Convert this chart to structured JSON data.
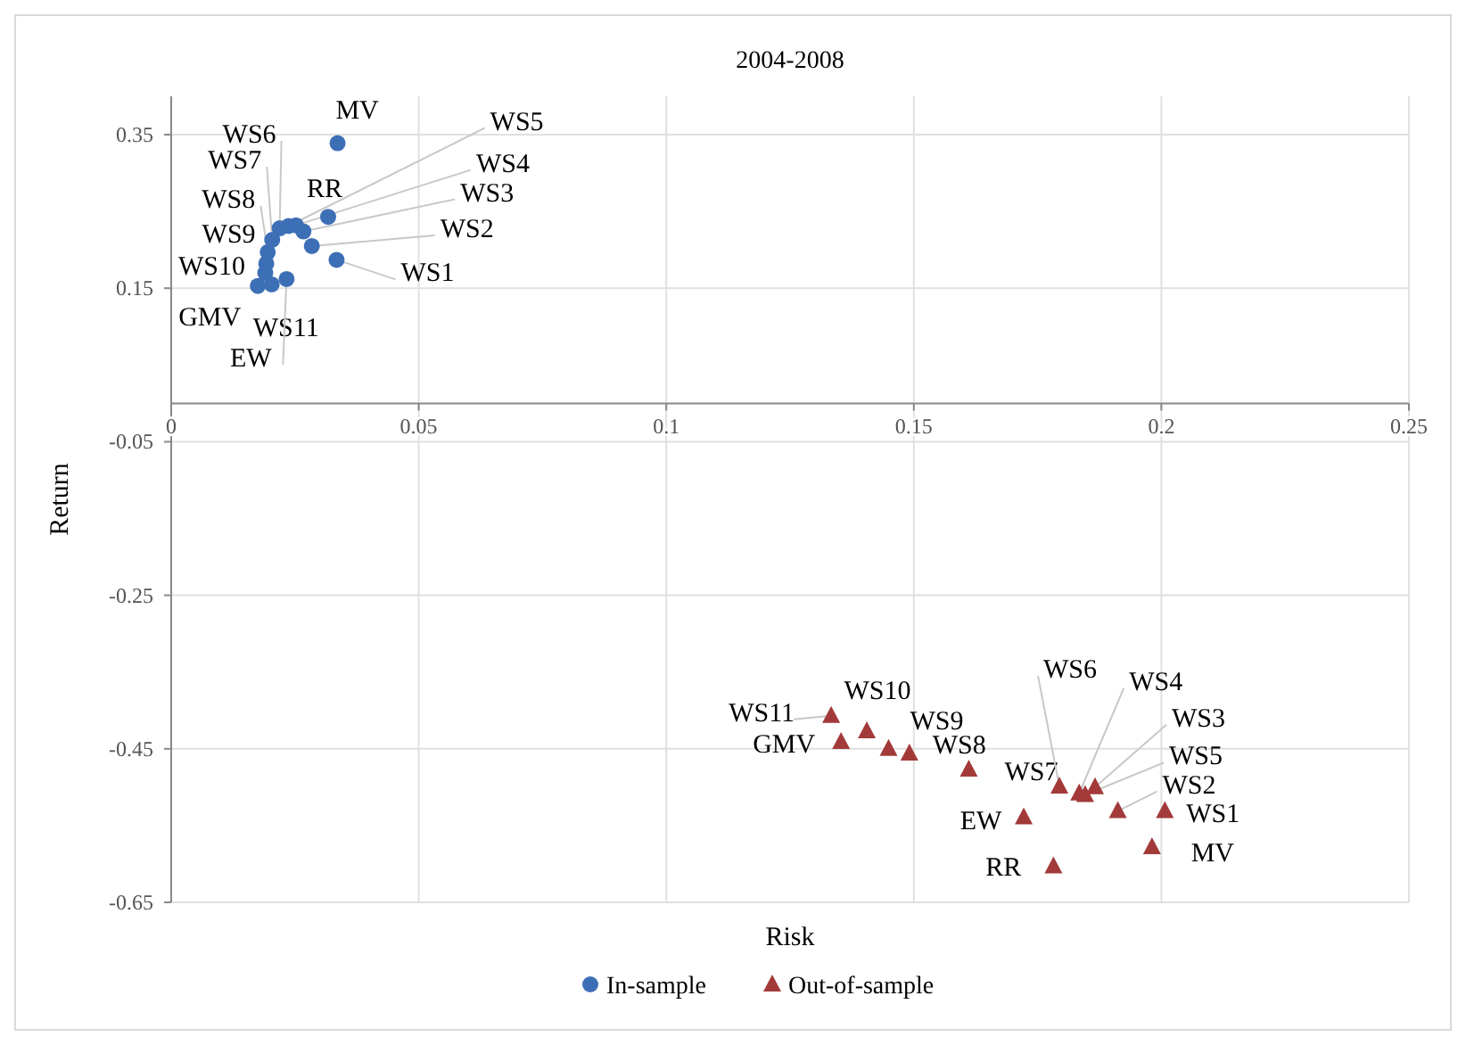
{
  "chart_data": {
    "type": "scatter",
    "title": "2004-2008",
    "xlabel": "Risk",
    "ylabel": "Return",
    "xlim": [
      0,
      0.25
    ],
    "xticks": [
      0,
      0.05,
      0.1,
      0.15,
      0.2,
      0.25
    ],
    "ylim": [
      -0.65,
      0.4
    ],
    "yticks": [
      0.35,
      0.15,
      -0.05,
      -0.25,
      -0.45,
      -0.65
    ],
    "grid": true,
    "legend": "bottom",
    "series": [
      {
        "name": "In-sample",
        "color": "#3d6fb6",
        "marker": "circle",
        "x": [
          0.0336,
          0.0317,
          0.0334,
          0.0284,
          0.0267,
          0.0252,
          0.0237,
          0.0219,
          0.0204,
          0.0195,
          0.0192,
          0.019,
          0.0175,
          0.0203,
          0.0233
        ],
        "values": [
          0.339,
          0.243,
          0.187,
          0.205,
          0.224,
          0.232,
          0.231,
          0.228,
          0.213,
          0.197,
          0.182,
          0.17,
          0.153,
          0.155,
          0.162
        ]
      },
      {
        "name": "Out-of-sample",
        "color": "#a33a3a",
        "marker": "triangle",
        "x": [
          0.1333,
          0.1405,
          0.1353,
          0.1449,
          0.1491,
          0.1611,
          0.1794,
          0.1834,
          0.1866,
          0.1846,
          0.1912,
          0.2007,
          0.1722,
          0.1981,
          0.1782
        ],
        "values": [
          -0.407,
          -0.427,
          -0.441,
          -0.45,
          -0.456,
          -0.477,
          -0.499,
          -0.508,
          -0.5,
          -0.51,
          -0.531,
          -0.531,
          -0.539,
          -0.578,
          -0.603
        ]
      }
    ],
    "annotations": [
      {
        "text": "MV",
        "x": 0.0336,
        "y": 0.339
      },
      {
        "text": "RR",
        "x": 0.0317,
        "y": 0.243
      },
      {
        "text": "WS1",
        "x": 0.0334,
        "y": 0.187
      },
      {
        "text": "WS2",
        "x": 0.0284,
        "y": 0.205
      },
      {
        "text": "WS3",
        "x": 0.0267,
        "y": 0.224
      },
      {
        "text": "WS4",
        "x": 0.0252,
        "y": 0.232
      },
      {
        "text": "WS5",
        "x": 0.0237,
        "y": 0.231
      },
      {
        "text": "WS6",
        "x": 0.0219,
        "y": 0.228
      },
      {
        "text": "WS7",
        "x": 0.0204,
        "y": 0.213
      },
      {
        "text": "WS8",
        "x": 0.0195,
        "y": 0.197
      },
      {
        "text": "WS9",
        "x": 0.0192,
        "y": 0.182
      },
      {
        "text": "WS10",
        "x": 0.019,
        "y": 0.17
      },
      {
        "text": "GMV",
        "x": 0.0175,
        "y": 0.153
      },
      {
        "text": "WS11",
        "x": 0.0203,
        "y": 0.155
      },
      {
        "text": "EW",
        "x": 0.0233,
        "y": 0.162
      },
      {
        "text": "WS11",
        "x": 0.1333,
        "y": -0.407
      },
      {
        "text": "WS10",
        "x": 0.1405,
        "y": -0.427
      },
      {
        "text": "GMV",
        "x": 0.1353,
        "y": -0.441
      },
      {
        "text": "WS9",
        "x": 0.1449,
        "y": -0.45
      },
      {
        "text": "WS8",
        "x": 0.1491,
        "y": -0.456
      },
      {
        "text": "WS7",
        "x": 0.1611,
        "y": -0.477
      },
      {
        "text": "WS6",
        "x": 0.1794,
        "y": -0.499
      },
      {
        "text": "WS4",
        "x": 0.1834,
        "y": -0.508
      },
      {
        "text": "WS3",
        "x": 0.1866,
        "y": -0.5
      },
      {
        "text": "WS5",
        "x": 0.1846,
        "y": -0.51
      },
      {
        "text": "WS2",
        "x": 0.1912,
        "y": -0.531
      },
      {
        "text": "WS1",
        "x": 0.2007,
        "y": -0.531
      },
      {
        "text": "EW",
        "x": 0.1722,
        "y": -0.539
      },
      {
        "text": "MV",
        "x": 0.1981,
        "y": -0.578
      },
      {
        "text": "RR",
        "x": 0.1782,
        "y": -0.603
      }
    ]
  }
}
